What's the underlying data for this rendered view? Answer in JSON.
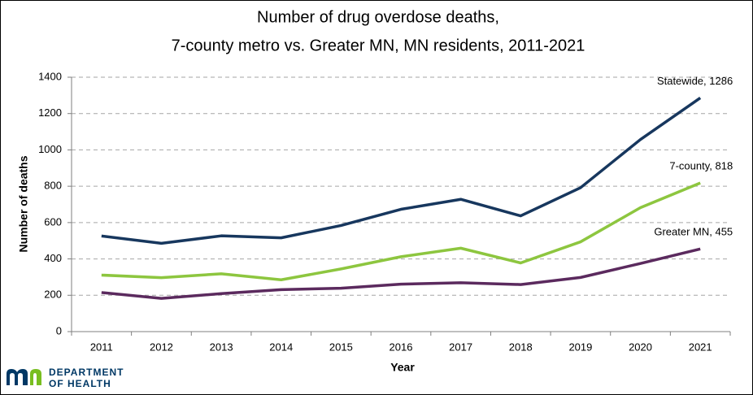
{
  "chart_data": {
    "type": "line",
    "title": [
      "Number of drug overdose deaths,",
      "7-county metro vs. Greater MN, MN residents, 2011-2021"
    ],
    "x_label": "Year",
    "y_label": "Number of deaths",
    "categories": [
      "2011",
      "2012",
      "2013",
      "2014",
      "2015",
      "2016",
      "2017",
      "2018",
      "2019",
      "2020",
      "2021"
    ],
    "series": [
      {
        "name": "Statewide",
        "color": "#17375e",
        "values": [
          526,
          486,
          527,
          516,
          584,
          673,
          728,
          637,
          792,
          1057,
          1286
        ]
      },
      {
        "name": "7-county",
        "color": "#8dc63f",
        "values": [
          311,
          297,
          318,
          285,
          345,
          412,
          459,
          378,
          494,
          682,
          818
        ]
      },
      {
        "name": "Greater MN",
        "color": "#5b2a5e",
        "values": [
          215,
          183,
          209,
          231,
          239,
          261,
          269,
          259,
          298,
          375,
          455
        ]
      }
    ],
    "annotations": [
      "Statewide, 1286",
      "7-county, 818",
      "Greater MN, 455"
    ],
    "ylim": [
      0,
      1400
    ],
    "yticks": [
      0,
      200,
      400,
      600,
      800,
      1000,
      1200,
      1400
    ],
    "grid": true
  },
  "footer": {
    "logo_text": [
      "DEPARTMENT",
      "OF HEALTH"
    ]
  }
}
